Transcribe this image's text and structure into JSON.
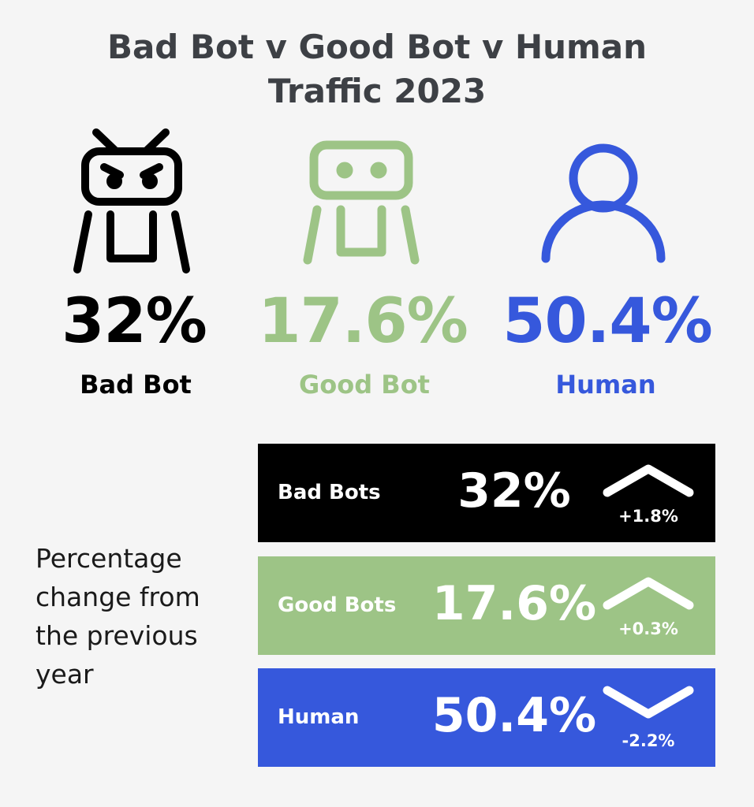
{
  "title": "Bad Bot v Good Bot v Human Traffic 2023",
  "stats": [
    {
      "value": "32%",
      "label": "Bad Bot"
    },
    {
      "value": "17.6%",
      "label": "Good Bot"
    },
    {
      "value": "50.4%",
      "label": "Human"
    }
  ],
  "change_note": "Percentage change from the previous year",
  "changes": [
    {
      "label": "Bad Bots",
      "value": "32%",
      "change": "+1.8%"
    },
    {
      "label": "Good Bots",
      "value": "17.6%",
      "change": "+0.3%"
    },
    {
      "label": "Human",
      "value": "50.4%",
      "change": "-2.2%"
    }
  ]
}
